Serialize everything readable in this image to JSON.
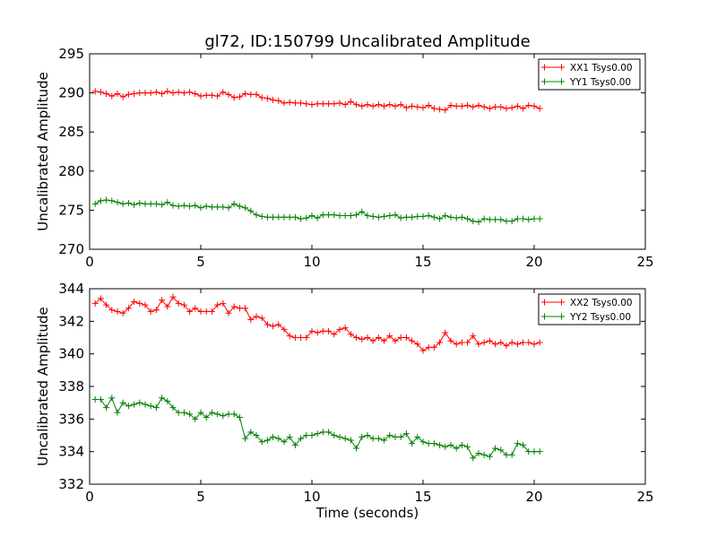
{
  "figure": {
    "title": "gl72, ID:150799 Uncalibrated Amplitude"
  },
  "chart_data": [
    {
      "type": "line",
      "title": "gl72, ID:150799 Uncalibrated Amplitude",
      "xlabel": "",
      "ylabel": "Uncalibrated Amplitude",
      "xlim": [
        0,
        25
      ],
      "ylim": [
        270,
        295
      ],
      "xticks": [
        0,
        5,
        10,
        15,
        20,
        25
      ],
      "yticks": [
        270,
        275,
        280,
        285,
        290,
        295
      ],
      "grid": false,
      "legend_position": "top-right",
      "series": [
        {
          "name": "XX1 Tsys0.00",
          "color": "#ff0000",
          "x": [
            0.25,
            0.5,
            0.75,
            1.0,
            1.25,
            1.5,
            1.75,
            2.0,
            2.25,
            2.5,
            2.75,
            3.0,
            3.25,
            3.5,
            3.75,
            4.0,
            4.25,
            4.5,
            4.75,
            5.0,
            5.25,
            5.5,
            5.75,
            6.0,
            6.25,
            6.5,
            6.75,
            7.0,
            7.25,
            7.5,
            7.75,
            8.0,
            8.25,
            8.5,
            8.75,
            9.0,
            9.25,
            9.5,
            9.75,
            10.0,
            10.25,
            10.5,
            10.75,
            11.0,
            11.25,
            11.5,
            11.75,
            12.0,
            12.25,
            12.5,
            12.75,
            13.0,
            13.25,
            13.5,
            13.75,
            14.0,
            14.25,
            14.5,
            14.75,
            15.0,
            15.25,
            15.5,
            15.75,
            16.0,
            16.25,
            16.5,
            16.75,
            17.0,
            17.25,
            17.5,
            17.75,
            18.0,
            18.25,
            18.5,
            18.75,
            19.0,
            19.25,
            19.5,
            19.75,
            20.0,
            20.25
          ],
          "values": [
            290.2,
            290.1,
            289.9,
            289.6,
            289.9,
            289.5,
            289.8,
            289.9,
            290.0,
            290.0,
            290.0,
            290.1,
            289.9,
            290.2,
            290.0,
            290.1,
            290.0,
            290.1,
            289.9,
            289.6,
            289.7,
            289.7,
            289.6,
            290.1,
            289.8,
            289.4,
            289.5,
            289.9,
            289.8,
            289.8,
            289.4,
            289.3,
            289.1,
            289.0,
            288.7,
            288.8,
            288.7,
            288.7,
            288.6,
            288.5,
            288.6,
            288.6,
            288.6,
            288.6,
            288.7,
            288.5,
            288.9,
            288.5,
            288.3,
            288.5,
            288.3,
            288.5,
            288.3,
            288.5,
            288.3,
            288.5,
            288.1,
            288.3,
            288.2,
            288.1,
            288.4,
            288.0,
            287.9,
            287.8,
            288.4,
            288.3,
            288.3,
            288.4,
            288.2,
            288.4,
            288.2,
            288.0,
            288.2,
            288.2,
            288.0,
            288.1,
            288.3,
            288.0,
            288.4,
            288.3,
            288.0
          ]
        },
        {
          "name": "YY1 Tsys0.00",
          "color": "#008000",
          "x": [
            0.25,
            0.5,
            0.75,
            1.0,
            1.25,
            1.5,
            1.75,
            2.0,
            2.25,
            2.5,
            2.75,
            3.0,
            3.25,
            3.5,
            3.75,
            4.0,
            4.25,
            4.5,
            4.75,
            5.0,
            5.25,
            5.5,
            5.75,
            6.0,
            6.25,
            6.5,
            6.75,
            7.0,
            7.25,
            7.5,
            7.75,
            8.0,
            8.25,
            8.5,
            8.75,
            9.0,
            9.25,
            9.5,
            9.75,
            10.0,
            10.25,
            10.5,
            10.75,
            11.0,
            11.25,
            11.5,
            11.75,
            12.0,
            12.25,
            12.5,
            12.75,
            13.0,
            13.25,
            13.5,
            13.75,
            14.0,
            14.25,
            14.5,
            14.75,
            15.0,
            15.25,
            15.5,
            15.75,
            16.0,
            16.25,
            16.5,
            16.75,
            17.0,
            17.25,
            17.5,
            17.75,
            18.0,
            18.25,
            18.5,
            18.75,
            19.0,
            19.25,
            19.5,
            19.75,
            20.0,
            20.25
          ],
          "values": [
            275.8,
            276.2,
            276.3,
            276.2,
            276.0,
            275.8,
            275.9,
            275.7,
            275.9,
            275.8,
            275.8,
            275.8,
            275.7,
            276.0,
            275.6,
            275.5,
            275.6,
            275.5,
            275.6,
            275.3,
            275.5,
            275.4,
            275.4,
            275.4,
            275.3,
            275.8,
            275.5,
            275.3,
            274.9,
            274.4,
            274.2,
            274.1,
            274.1,
            274.1,
            274.1,
            274.1,
            274.1,
            273.9,
            274.0,
            274.3,
            274.0,
            274.4,
            274.4,
            274.4,
            274.3,
            274.3,
            274.3,
            274.4,
            274.8,
            274.3,
            274.2,
            274.1,
            274.2,
            274.3,
            274.4,
            274.0,
            274.1,
            274.1,
            274.2,
            274.2,
            274.3,
            274.1,
            273.9,
            274.3,
            274.1,
            274.0,
            274.1,
            273.9,
            273.6,
            273.5,
            273.9,
            273.8,
            273.8,
            273.8,
            273.6,
            273.6,
            273.9,
            273.9,
            273.8,
            273.9,
            273.9
          ]
        }
      ]
    },
    {
      "type": "line",
      "title": "",
      "xlabel": "Time (seconds)",
      "ylabel": "Uncalibrated Amplitude",
      "xlim": [
        0,
        25
      ],
      "ylim": [
        332,
        344
      ],
      "xticks": [
        0,
        5,
        10,
        15,
        20,
        25
      ],
      "yticks": [
        332,
        334,
        336,
        338,
        340,
        342,
        344
      ],
      "grid": false,
      "legend_position": "top-right",
      "series": [
        {
          "name": "XX2 Tsys0.00",
          "color": "#ff0000",
          "x": [
            0.25,
            0.5,
            0.75,
            1.0,
            1.25,
            1.5,
            1.75,
            2.0,
            2.25,
            2.5,
            2.75,
            3.0,
            3.25,
            3.5,
            3.75,
            4.0,
            4.25,
            4.5,
            4.75,
            5.0,
            5.25,
            5.5,
            5.75,
            6.0,
            6.25,
            6.5,
            6.75,
            7.0,
            7.25,
            7.5,
            7.75,
            8.0,
            8.25,
            8.5,
            8.75,
            9.0,
            9.25,
            9.5,
            9.75,
            10.0,
            10.25,
            10.5,
            10.75,
            11.0,
            11.25,
            11.5,
            11.75,
            12.0,
            12.25,
            12.5,
            12.75,
            13.0,
            13.25,
            13.5,
            13.75,
            14.0,
            14.25,
            14.5,
            14.75,
            15.0,
            15.25,
            15.5,
            15.75,
            16.0,
            16.25,
            16.5,
            16.75,
            17.0,
            17.25,
            17.5,
            17.75,
            18.0,
            18.25,
            18.5,
            18.75,
            19.0,
            19.25,
            19.5,
            19.75,
            20.0,
            20.25
          ],
          "values": [
            343.1,
            343.4,
            343.0,
            342.7,
            342.6,
            342.5,
            342.8,
            343.2,
            343.1,
            343.0,
            342.6,
            342.7,
            343.3,
            342.9,
            343.5,
            343.1,
            343.0,
            342.6,
            342.8,
            342.6,
            342.6,
            342.6,
            343.0,
            343.1,
            342.5,
            342.9,
            342.8,
            342.8,
            342.1,
            342.3,
            342.2,
            341.8,
            341.7,
            341.8,
            341.5,
            341.1,
            341.0,
            341.0,
            341.0,
            341.4,
            341.3,
            341.4,
            341.4,
            341.2,
            341.5,
            341.6,
            341.2,
            341.0,
            340.9,
            341.0,
            340.8,
            341.0,
            340.8,
            341.1,
            340.8,
            341.0,
            341.0,
            340.8,
            340.6,
            340.2,
            340.4,
            340.4,
            340.7,
            341.3,
            340.8,
            340.6,
            340.7,
            340.7,
            341.1,
            340.6,
            340.7,
            340.8,
            340.6,
            340.7,
            340.5,
            340.7,
            340.6,
            340.7,
            340.7,
            340.6,
            340.7
          ]
        },
        {
          "name": "YY2 Tsys0.00",
          "color": "#008000",
          "x": [
            0.25,
            0.5,
            0.75,
            1.0,
            1.25,
            1.5,
            1.75,
            2.0,
            2.25,
            2.5,
            2.75,
            3.0,
            3.25,
            3.5,
            3.75,
            4.0,
            4.25,
            4.5,
            4.75,
            5.0,
            5.25,
            5.5,
            5.75,
            6.0,
            6.25,
            6.5,
            6.75,
            7.0,
            7.25,
            7.5,
            7.75,
            8.0,
            8.25,
            8.5,
            8.75,
            9.0,
            9.25,
            9.5,
            9.75,
            10.0,
            10.25,
            10.5,
            10.75,
            11.0,
            11.25,
            11.5,
            11.75,
            12.0,
            12.25,
            12.5,
            12.75,
            13.0,
            13.25,
            13.5,
            13.75,
            14.0,
            14.25,
            14.5,
            14.75,
            15.0,
            15.25,
            15.5,
            15.75,
            16.0,
            16.25,
            16.5,
            16.75,
            17.0,
            17.25,
            17.5,
            17.75,
            18.0,
            18.25,
            18.5,
            18.75,
            19.0,
            19.25,
            19.5,
            19.75,
            20.0,
            20.25
          ],
          "values": [
            337.2,
            337.2,
            336.7,
            337.3,
            336.4,
            337.0,
            336.8,
            336.9,
            337.0,
            336.9,
            336.8,
            336.7,
            337.3,
            337.1,
            336.7,
            336.4,
            336.4,
            336.3,
            336.0,
            336.4,
            336.1,
            336.4,
            336.3,
            336.2,
            336.3,
            336.3,
            336.1,
            334.8,
            335.2,
            335.0,
            334.6,
            334.7,
            334.9,
            334.8,
            334.6,
            334.9,
            334.4,
            334.8,
            335.0,
            335.0,
            335.1,
            335.2,
            335.2,
            335.0,
            334.9,
            334.8,
            334.7,
            334.2,
            334.9,
            335.0,
            334.8,
            334.8,
            334.7,
            335.0,
            334.9,
            334.9,
            335.1,
            334.5,
            334.9,
            334.6,
            334.5,
            334.5,
            334.4,
            334.3,
            334.4,
            334.2,
            334.4,
            334.3,
            333.6,
            333.9,
            333.8,
            333.7,
            334.2,
            334.1,
            333.8,
            333.8,
            334.5,
            334.4,
            334.0,
            334.0,
            334.0
          ]
        }
      ]
    }
  ]
}
